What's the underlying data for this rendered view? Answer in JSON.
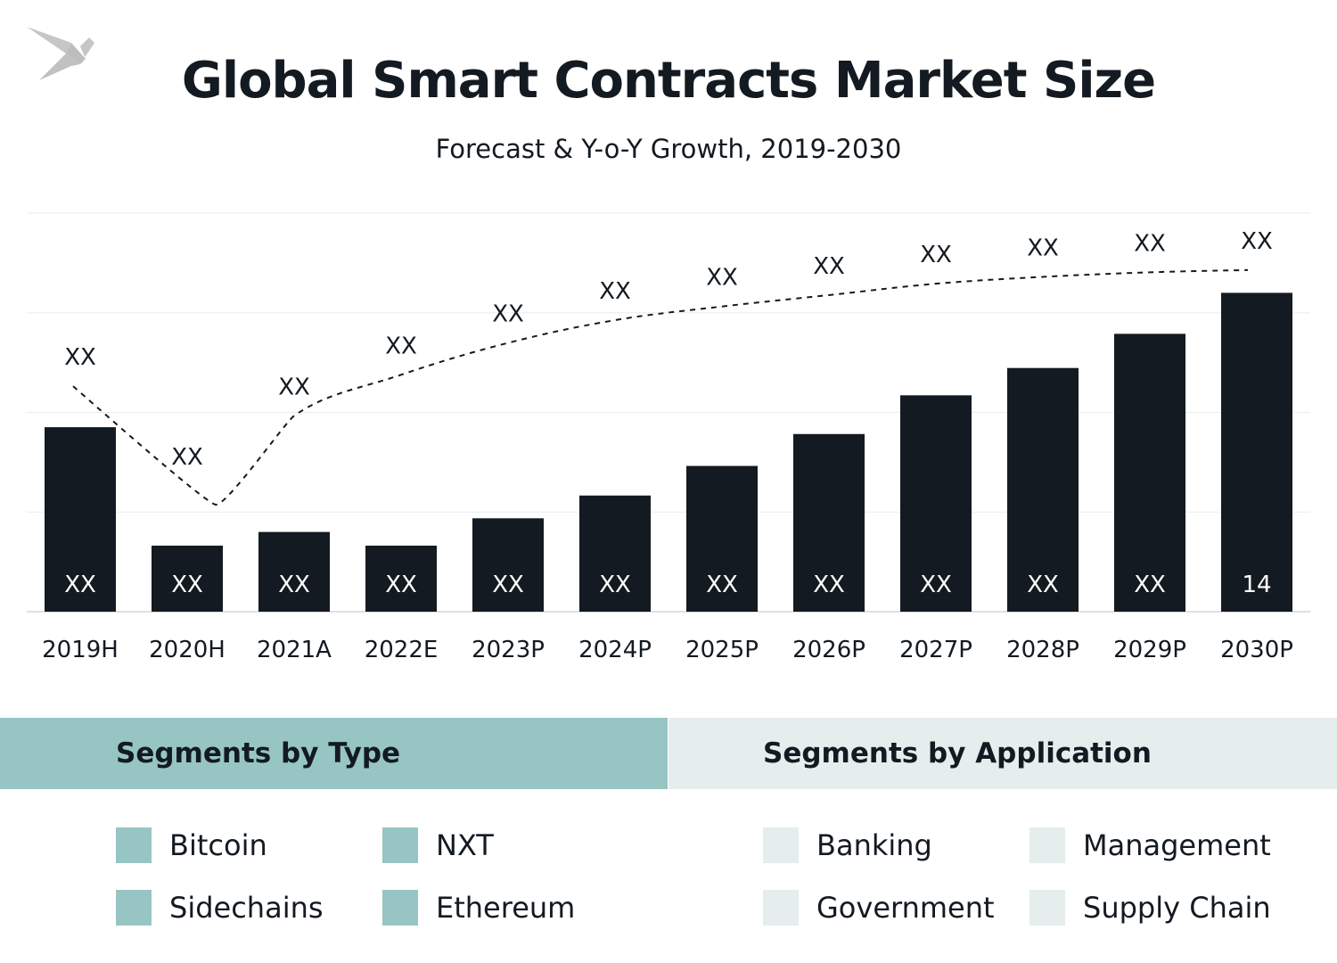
{
  "title": "Global Smart Contracts Market Size",
  "subtitle": "Forecast & Y-o-Y Growth, 2019-2030",
  "logo_icon": "origami-bird-icon",
  "chart_data": {
    "type": "bar",
    "categories": [
      "2019H",
      "2020H",
      "2021A",
      "2022E",
      "2023P",
      "2024P",
      "2025P",
      "2026P",
      "2027P",
      "2028P",
      "2029P",
      "2030P"
    ],
    "values": [
      8.1,
      2.9,
      3.5,
      2.9,
      4.1,
      5.1,
      6.4,
      7.8,
      9.5,
      10.7,
      12.2,
      14
    ],
    "value_labels": [
      "XX",
      "XX",
      "XX",
      "XX",
      "XX",
      "XX",
      "XX",
      "XX",
      "XX",
      "XX",
      "XX",
      "14"
    ],
    "growth_line": {
      "style": "dotted",
      "values": [
        9.9,
        4.7,
        8.6,
        10.4,
        11.8,
        12.8,
        13.4,
        13.9,
        14.4,
        14.7,
        14.9,
        15.0
      ],
      "labels": [
        "XX",
        "XX",
        "XX",
        "XX",
        "XX",
        "XX",
        "XX",
        "XX",
        "XX",
        "XX",
        "XX",
        "XX"
      ]
    },
    "ylim": [
      0,
      17.5
    ],
    "grid": true,
    "bar_color": "#131a21",
    "label_color": "#ffffff"
  },
  "segments": {
    "type": {
      "title": "Segments by Type",
      "color": "#97c5c3",
      "items": [
        "Bitcoin",
        "NXT",
        "Sidechains",
        "Ethereum"
      ]
    },
    "application": {
      "title": "Segments by Application",
      "color": "#e5eeec",
      "items": [
        "Banking",
        "Management",
        "Government",
        "Supply Chain"
      ]
    }
  }
}
